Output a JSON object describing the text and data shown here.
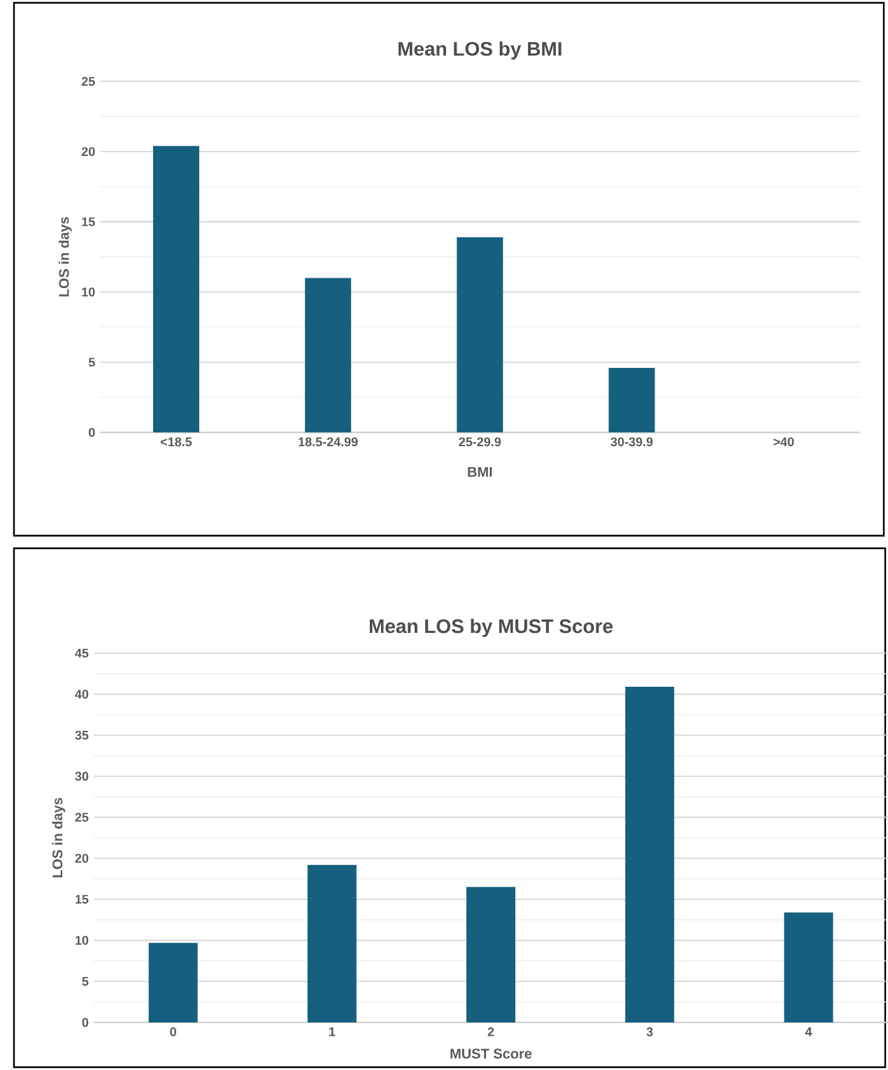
{
  "chart_data": [
    {
      "type": "bar",
      "title": "Mean LOS by BMI",
      "xlabel": "BMI",
      "ylabel": "LOS in days",
      "categories": [
        "<18.5",
        "18.5-24.99",
        "25-29.9",
        "30-39.9",
        ">40"
      ],
      "values": [
        20.4,
        11.0,
        13.9,
        4.6,
        null
      ],
      "color": "#155f7f",
      "ylim": [
        0,
        25
      ],
      "yticks": [
        0,
        5,
        10,
        15,
        20,
        25
      ],
      "grid": "y"
    },
    {
      "type": "bar",
      "title": "Mean LOS by MUST Score",
      "xlabel": "MUST Score",
      "ylabel": "LOS in days",
      "categories": [
        "0",
        "1",
        "2",
        "3",
        "4"
      ],
      "values": [
        9.7,
        19.2,
        16.5,
        40.9,
        13.4
      ],
      "color": "#155f7f",
      "ylim": [
        0,
        45
      ],
      "yticks": [
        0,
        5,
        10,
        15,
        20,
        25,
        30,
        35,
        40,
        45
      ],
      "grid": "y"
    }
  ]
}
